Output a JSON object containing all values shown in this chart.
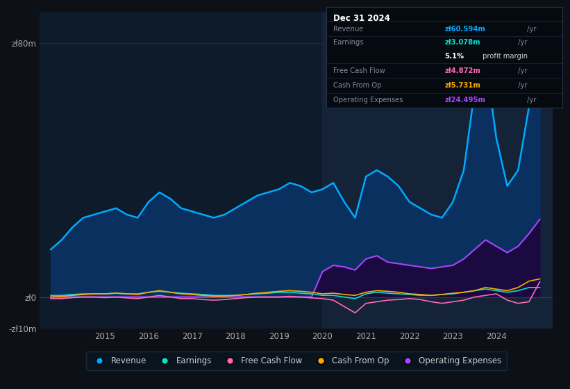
{
  "bg_color": "#0d1117",
  "plot_bg_color": "#0d1b2a",
  "line_colors": {
    "revenue": "#00aaff",
    "earnings": "#00e5cc",
    "fcf": "#ff69b4",
    "cashfromop": "#ffaa00",
    "opex": "#aa44ff"
  },
  "fill_revenue": "#0a3060",
  "fill_opex": "#1a0a40",
  "highlight_bg": "#1a2a40",
  "ylim": [
    -10,
    90
  ],
  "xlim": [
    2013.5,
    2025.3
  ],
  "ytick_vals": [
    -10,
    0,
    80
  ],
  "ytick_labels": [
    "-zł10m",
    "zł0",
    "zł80m"
  ],
  "xtick_vals": [
    2015,
    2016,
    2017,
    2018,
    2019,
    2020,
    2021,
    2022,
    2023,
    2024
  ],
  "highlight_start": 2020.0,
  "highlight_end": 2025.3,
  "years": [
    2013.75,
    2014.0,
    2014.25,
    2014.5,
    2014.75,
    2015.0,
    2015.25,
    2015.5,
    2015.75,
    2016.0,
    2016.25,
    2016.5,
    2016.75,
    2017.0,
    2017.25,
    2017.5,
    2017.75,
    2018.0,
    2018.25,
    2018.5,
    2018.75,
    2019.0,
    2019.25,
    2019.5,
    2019.75,
    2020.0,
    2020.25,
    2020.5,
    2020.75,
    2021.0,
    2021.25,
    2021.5,
    2021.75,
    2022.0,
    2022.25,
    2022.5,
    2022.75,
    2023.0,
    2023.25,
    2023.5,
    2023.75,
    2024.0,
    2024.25,
    2024.5,
    2024.75,
    2025.0
  ],
  "revenue": [
    15,
    18,
    22,
    25,
    26,
    27,
    28,
    26,
    25,
    30,
    33,
    31,
    28,
    27,
    26,
    25,
    26,
    28,
    30,
    32,
    33,
    34,
    36,
    35,
    33,
    34,
    36,
    30,
    25,
    38,
    40,
    38,
    35,
    30,
    28,
    26,
    25,
    30,
    40,
    65,
    75,
    50,
    35,
    40,
    60,
    60
  ],
  "earnings": [
    0.5,
    0.5,
    0.8,
    1.0,
    1.0,
    1.0,
    1.2,
    1.0,
    1.0,
    1.5,
    1.8,
    1.5,
    1.2,
    1.0,
    0.8,
    0.5,
    0.5,
    0.5,
    0.8,
    1.0,
    1.2,
    1.5,
    1.5,
    1.2,
    1.0,
    0.5,
    0.5,
    0.0,
    -0.5,
    1.0,
    1.5,
    1.2,
    1.0,
    0.8,
    0.5,
    0.5,
    0.8,
    1.0,
    1.5,
    2.0,
    2.5,
    2.0,
    1.5,
    2.0,
    3.0,
    3.0
  ],
  "fcf": [
    -0.5,
    -0.5,
    -0.2,
    0.0,
    0.0,
    -0.2,
    0.0,
    -0.3,
    -0.5,
    0.0,
    0.5,
    0.0,
    -0.5,
    -0.5,
    -0.8,
    -1.0,
    -0.8,
    -0.5,
    -0.2,
    0.0,
    0.0,
    0.0,
    0.2,
    0.0,
    -0.3,
    -0.5,
    -1.0,
    -3.0,
    -5.0,
    -2.0,
    -1.5,
    -1.0,
    -0.8,
    -0.5,
    -0.8,
    -1.5,
    -2.0,
    -1.5,
    -1.0,
    0.0,
    0.5,
    1.0,
    -1.0,
    -2.0,
    -1.5,
    4.8
  ],
  "cashfromop": [
    0.0,
    0.2,
    0.5,
    0.8,
    1.0,
    1.0,
    1.2,
    1.0,
    0.8,
    1.5,
    2.0,
    1.5,
    1.0,
    0.8,
    0.5,
    0.3,
    0.3,
    0.5,
    0.8,
    1.2,
    1.5,
    1.8,
    2.0,
    1.8,
    1.5,
    1.0,
    1.2,
    0.8,
    0.5,
    1.5,
    2.0,
    1.8,
    1.5,
    1.0,
    0.8,
    0.5,
    0.8,
    1.2,
    1.5,
    2.0,
    3.0,
    2.5,
    2.0,
    3.0,
    5.0,
    5.7
  ],
  "opex": [
    0.0,
    0.0,
    0.0,
    0.0,
    0.0,
    0.0,
    0.0,
    0.0,
    0.0,
    0.0,
    0.0,
    0.0,
    0.0,
    0.0,
    0.0,
    0.0,
    0.0,
    0.0,
    0.0,
    0.0,
    0.0,
    0.0,
    0.0,
    0.0,
    0.0,
    8.0,
    10.0,
    9.5,
    8.5,
    12.0,
    13.0,
    11.0,
    10.5,
    10.0,
    9.5,
    9.0,
    9.5,
    10.0,
    12.0,
    15.0,
    18.0,
    16.0,
    14.0,
    16.0,
    20.0,
    24.5
  ],
  "legend": [
    {
      "label": "Revenue",
      "color": "#00aaff"
    },
    {
      "label": "Earnings",
      "color": "#00e5cc"
    },
    {
      "label": "Free Cash Flow",
      "color": "#ff69b4"
    },
    {
      "label": "Cash From Op",
      "color": "#ffaa00"
    },
    {
      "label": "Operating Expenses",
      "color": "#aa44ff"
    }
  ],
  "infobox": {
    "title": "Dec 31 2024",
    "title_color": "#ffffff",
    "bg": "#050a10",
    "border": "#2a3040",
    "rows": [
      {
        "label": "Revenue",
        "label_color": "#888899",
        "value": "zł60.594m",
        "value_color": "#00aaff",
        "suffix": " /yr"
      },
      {
        "label": "Earnings",
        "label_color": "#888899",
        "value": "zł3.078m",
        "value_color": "#00e5cc",
        "suffix": " /yr"
      },
      {
        "label": "",
        "label_color": "",
        "value": "5.1%",
        "value_color": "#ffffff",
        "suffix": " profit margin",
        "bold_val": true
      },
      {
        "label": "Free Cash Flow",
        "label_color": "#888899",
        "value": "zł4.872m",
        "value_color": "#ff69b4",
        "suffix": " /yr"
      },
      {
        "label": "Cash From Op",
        "label_color": "#888899",
        "value": "zł5.731m",
        "value_color": "#ffaa00",
        "suffix": " /yr"
      },
      {
        "label": "Operating Expenses",
        "label_color": "#888899",
        "value": "zł24.495m",
        "value_color": "#aa44ff",
        "suffix": " /yr"
      }
    ]
  }
}
